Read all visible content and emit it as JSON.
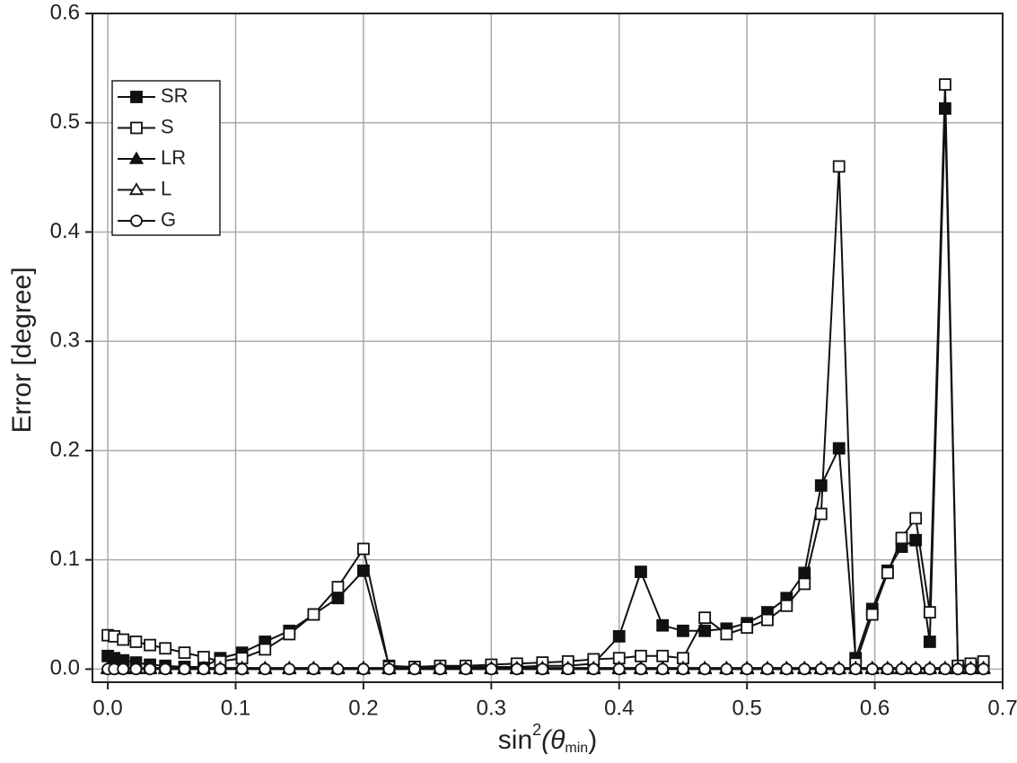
{
  "chart_data": {
    "type": "line",
    "ylabel": "Error [degree]",
    "xlabel": [
      "sin",
      "2",
      "(θ",
      "min",
      ")"
    ],
    "x": [
      0,
      0.005,
      0.012,
      0.022,
      0.033,
      0.045,
      0.06,
      0.075,
      0.088,
      0.105,
      0.123,
      0.142,
      0.161,
      0.18,
      0.2,
      0.22,
      0.24,
      0.26,
      0.28,
      0.3,
      0.32,
      0.34,
      0.36,
      0.38,
      0.4,
      0.417,
      0.434,
      0.45,
      0.467,
      0.484,
      0.5,
      0.516,
      0.531,
      0.545,
      0.558,
      0.572,
      0.585,
      0.598,
      0.61,
      0.621,
      0.632,
      0.643,
      0.655,
      0.665,
      0.675,
      0.685
    ],
    "series": [
      {
        "name": "SR",
        "color": "#111111",
        "marker": "square",
        "filled": true,
        "values": [
          0.012,
          0.01,
          0.008,
          0.006,
          0.004,
          0.003,
          0.002,
          0.002,
          0.01,
          0.015,
          0.025,
          0.035,
          0.05,
          0.065,
          0.09,
          0.003,
          0.002,
          0.002,
          0.002,
          0.002,
          0.002,
          0.003,
          0.003,
          0.005,
          0.03,
          0.089,
          0.04,
          0.035,
          0.035,
          0.037,
          0.042,
          0.052,
          0.065,
          0.088,
          0.168,
          0.202,
          0.01,
          0.055,
          0.09,
          0.112,
          0.118,
          0.025,
          0.513,
          0.002,
          0.002,
          0.003
        ]
      },
      {
        "name": "S",
        "color": "#111111",
        "marker": "square",
        "filled": false,
        "values": [
          0.031,
          0.03,
          0.027,
          0.025,
          0.022,
          0.019,
          0.015,
          0.011,
          0.007,
          0.01,
          0.018,
          0.032,
          0.05,
          0.075,
          0.11,
          0.002,
          0.002,
          0.003,
          0.003,
          0.004,
          0.005,
          0.006,
          0.007,
          0.009,
          0.01,
          0.012,
          0.012,
          0.01,
          0.047,
          0.032,
          0.038,
          0.045,
          0.058,
          0.078,
          0.142,
          0.46,
          0.005,
          0.05,
          0.088,
          0.12,
          0.138,
          0.052,
          0.535,
          0.003,
          0.005,
          0.007
        ]
      },
      {
        "name": "LR",
        "color": "#111111",
        "marker": "triangle",
        "filled": true,
        "values": [
          0.001,
          0.001,
          0.001,
          0.001,
          0.001,
          0.001,
          0.001,
          0.001,
          0.001,
          0.001,
          0.001,
          0.001,
          0.001,
          0.001,
          0.001,
          0.001,
          0.001,
          0.001,
          0.001,
          0.001,
          0.001,
          0.001,
          0.001,
          0.001,
          0.001,
          0.001,
          0.001,
          0.001,
          0.001,
          0.001,
          0.001,
          0.001,
          0.001,
          0.001,
          0.001,
          0.001,
          0.001,
          0.001,
          0.001,
          0.001,
          0.001,
          0.001,
          0.001,
          0.001,
          0.001,
          0.001
        ]
      },
      {
        "name": "L",
        "color": "#111111",
        "marker": "triangle",
        "filled": false,
        "values": [
          0,
          0,
          0,
          0,
          0,
          0,
          0,
          0,
          0,
          0,
          0,
          0,
          0,
          0,
          0,
          0,
          0,
          0,
          0,
          0,
          0,
          0,
          0,
          0,
          0,
          0,
          0,
          0,
          0,
          0,
          0,
          0,
          0,
          0,
          0,
          0,
          0,
          0,
          0,
          0,
          0,
          0,
          0,
          0,
          0,
          0
        ]
      },
      {
        "name": "G",
        "color": "#111111",
        "marker": "circle",
        "filled": false,
        "values": [
          0,
          0,
          0,
          0,
          0,
          0,
          0,
          0,
          0,
          0,
          0,
          0,
          0,
          0,
          0,
          0,
          0,
          0,
          0,
          0,
          0,
          0,
          0,
          0,
          0,
          0,
          0,
          0,
          0,
          0,
          0,
          0,
          0,
          0,
          0,
          0,
          0,
          0,
          0,
          0,
          0,
          0,
          0,
          0,
          0,
          0
        ]
      }
    ],
    "xlim": [
      -0.012,
      0.7
    ],
    "ylim": [
      -0.012,
      0.6
    ],
    "xticks": [
      {
        "value": 0,
        "label": "0.0"
      },
      0.1,
      0.2,
      0.3,
      0.4,
      0.5,
      0.6,
      0.7
    ],
    "yticks": [
      {
        "value": 0,
        "label": "0.0"
      },
      0.1,
      0.2,
      0.3,
      0.4,
      0.5,
      0.6
    ],
    "grid": true,
    "legend": "upper left"
  }
}
